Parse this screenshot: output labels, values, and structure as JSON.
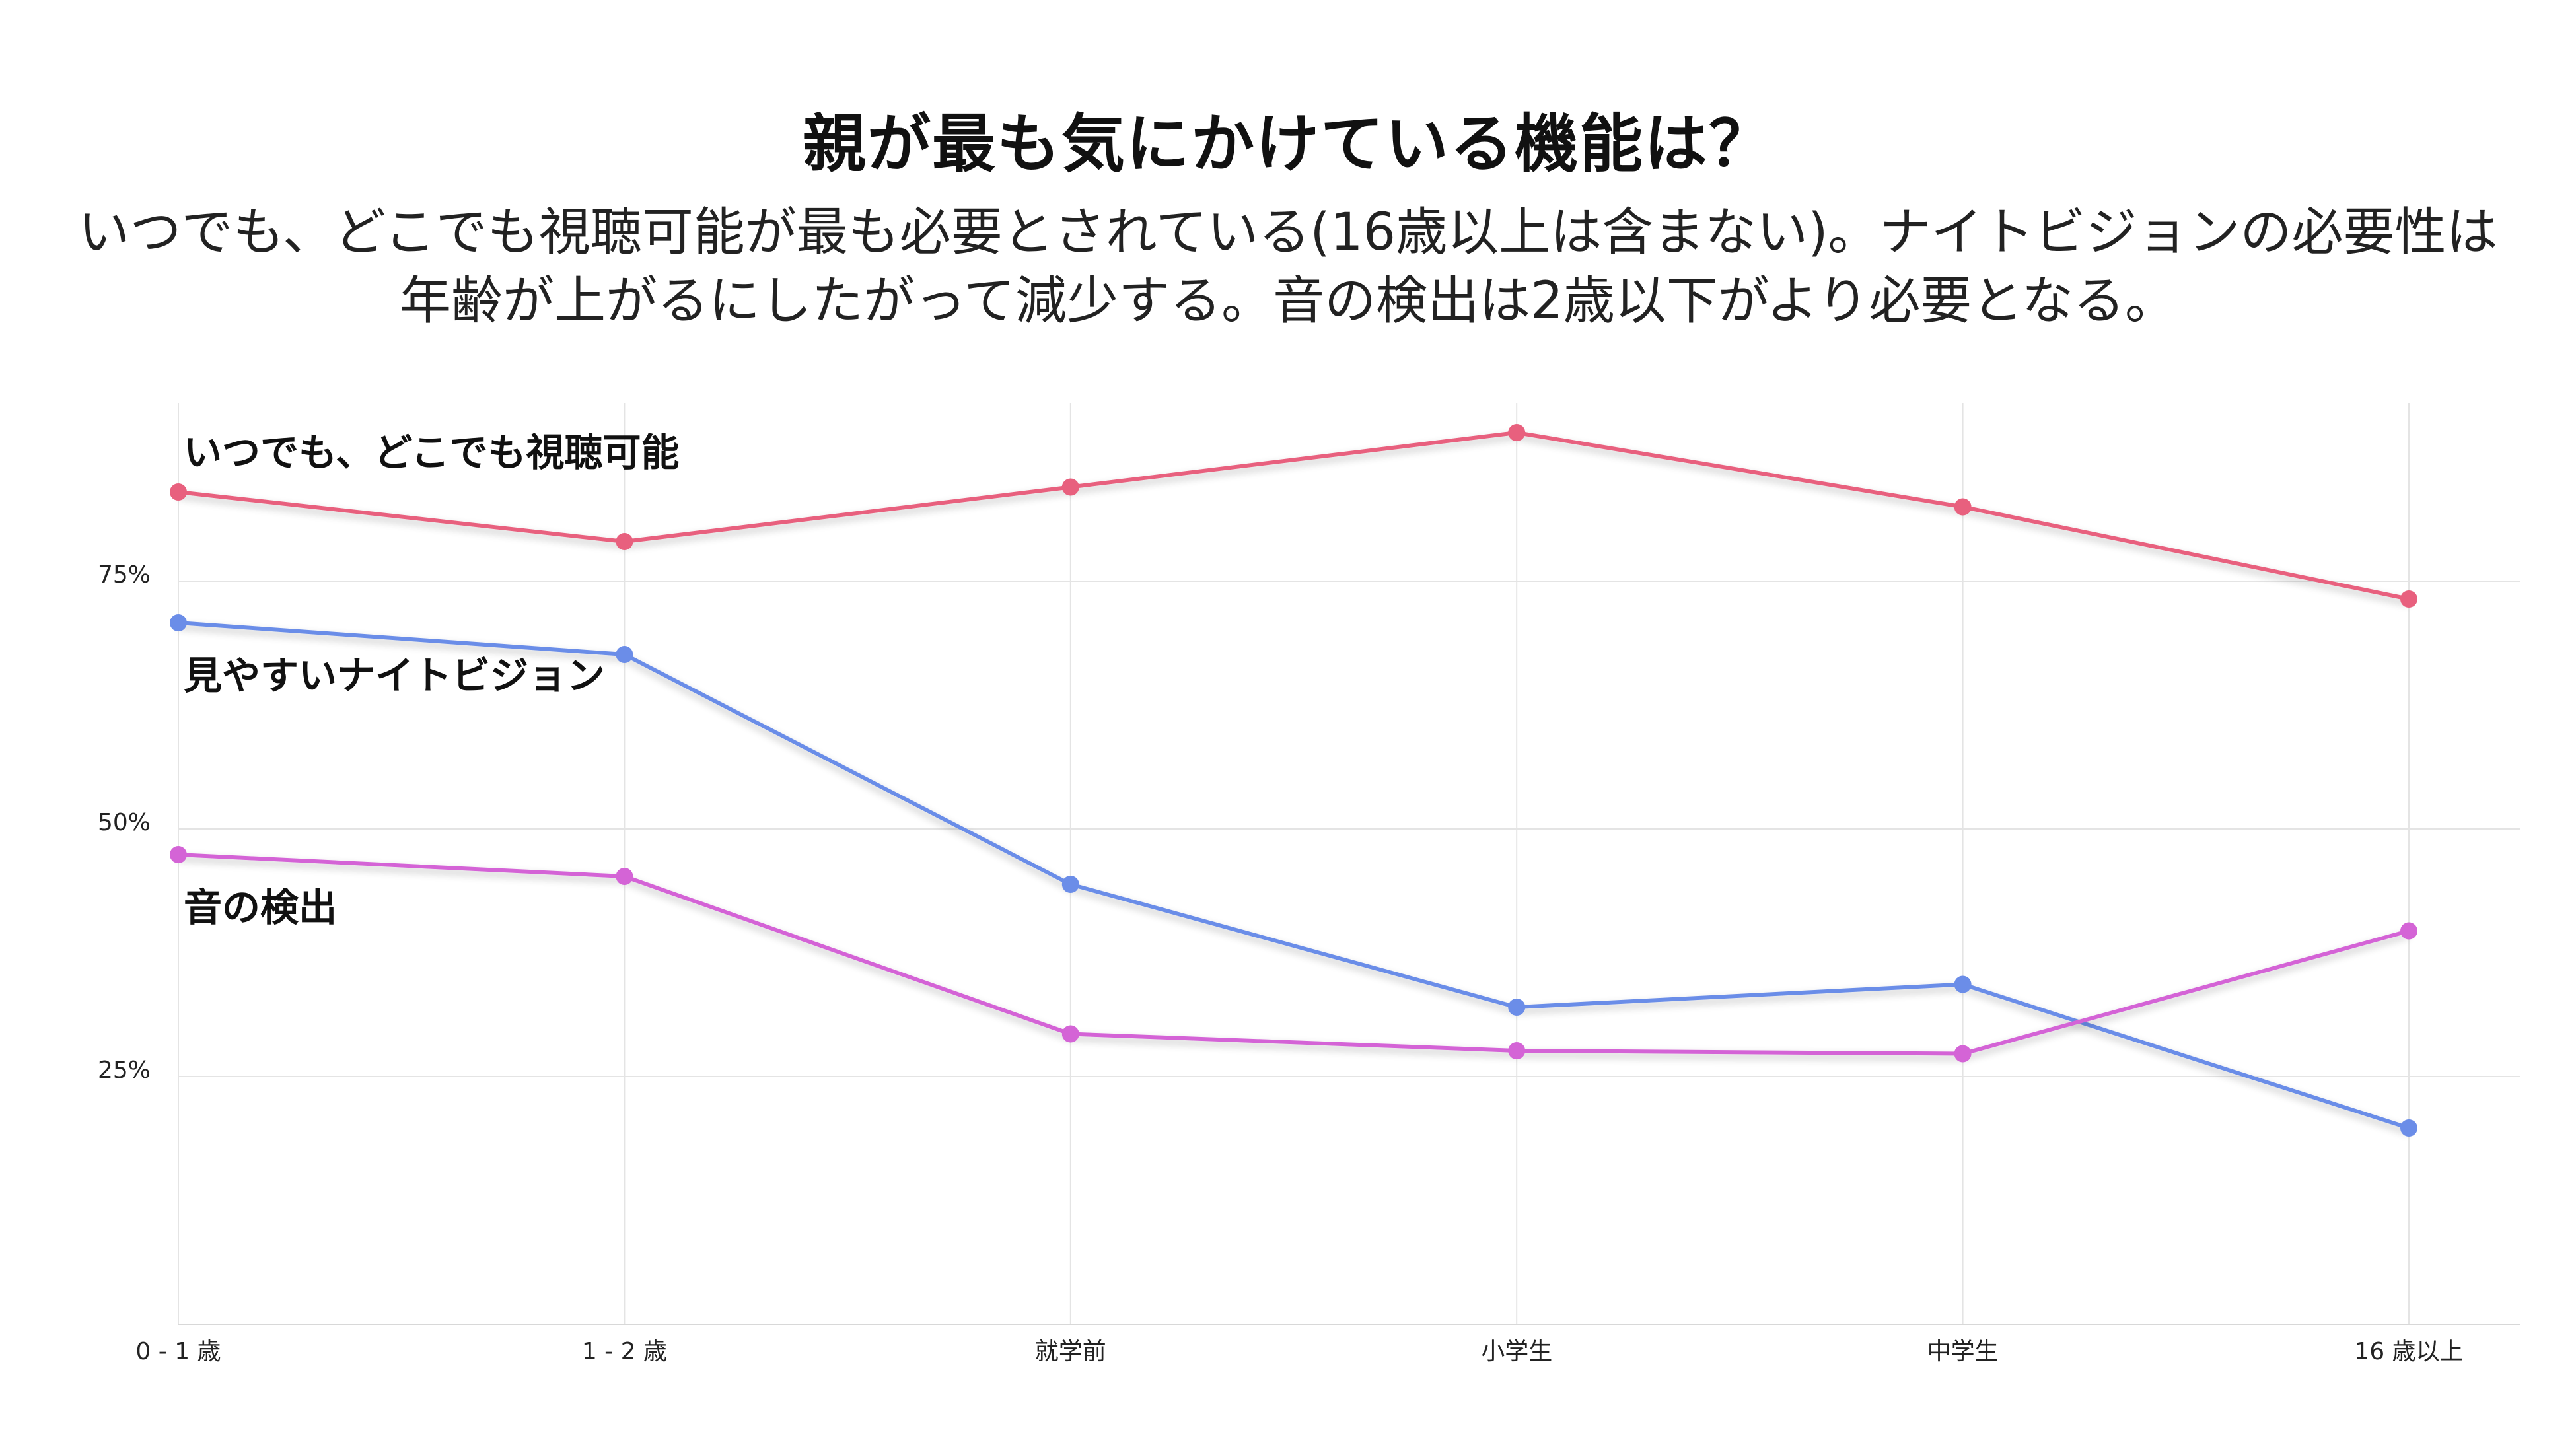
{
  "title": "親が最も気にかけている機能は？",
  "subtitle": "いつでも、どこでも視聴可能が最も必要とされている(16歳以上は含まない)。ナイトビジョンの必要性は年齢が上がるにしたがって減少する。音の検出は2歳以下がより必要となる。",
  "chart_data": {
    "type": "line",
    "title": "親が最も気にかけている機能は？",
    "categories": [
      "0 - 1 歳",
      "1 - 2 歳",
      "就学前",
      "小学生",
      "中学生",
      "16 歳以上"
    ],
    "ylim": [
      0,
      0.93
    ],
    "yticks": [
      {
        "value": 0.25,
        "label": "25%"
      },
      {
        "value": 0.5,
        "label": "50%"
      },
      {
        "value": 0.75,
        "label": "75%"
      }
    ],
    "grid": true,
    "series": [
      {
        "name": "いつでも、どこでも視聴可能",
        "color": "#e8607e",
        "values": [
          0.84,
          0.79,
          0.845,
          0.9,
          0.825,
          0.732
        ]
      },
      {
        "name": "見やすいナイトビジョン",
        "color": "#6b8de8",
        "values": [
          0.708,
          0.676,
          0.444,
          0.32,
          0.343,
          0.198
        ]
      },
      {
        "name": "音の検出",
        "color": "#d464d6",
        "values": [
          0.474,
          0.452,
          0.293,
          0.276,
          0.273,
          0.397
        ]
      }
    ]
  }
}
